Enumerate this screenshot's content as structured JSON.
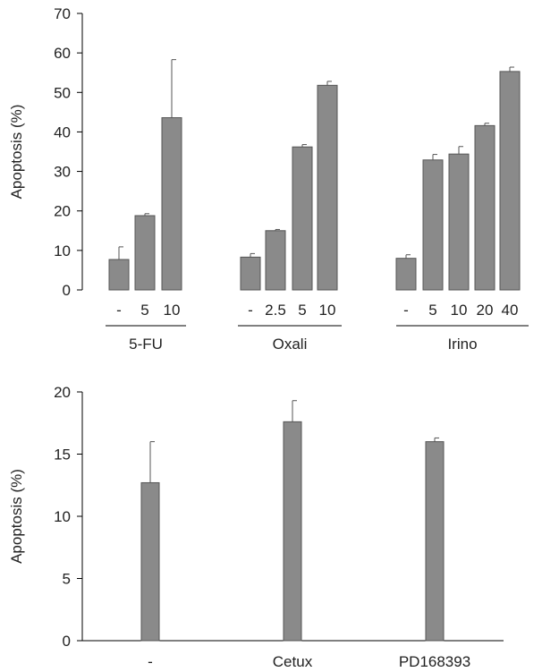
{
  "chart_data": [
    {
      "type": "bar",
      "ylabel": "Apoptosis (%)",
      "ylim": [
        0,
        70
      ],
      "yticks": [
        0,
        10,
        20,
        30,
        40,
        50,
        60,
        70
      ],
      "groups": [
        {
          "name": "5-FU",
          "categories": [
            "-",
            "5",
            "10"
          ],
          "values": [
            7.7,
            18.8,
            43.6
          ],
          "errors": [
            3.2,
            0.5,
            14.7
          ]
        },
        {
          "name": "Oxali",
          "categories": [
            "-",
            "2.5",
            "5",
            "10"
          ],
          "values": [
            8.3,
            15.0,
            36.2,
            51.8
          ],
          "errors": [
            0.9,
            0.3,
            0.6,
            1.0
          ]
        },
        {
          "name": "Irino",
          "categories": [
            "-",
            "5",
            "10",
            "20",
            "40"
          ],
          "values": [
            8.0,
            32.9,
            34.4,
            41.6,
            55.3
          ],
          "errors": [
            0.9,
            1.4,
            1.9,
            0.6,
            1.1
          ]
        }
      ]
    },
    {
      "type": "bar",
      "ylabel": "Apoptosis (%)",
      "ylim": [
        0,
        20
      ],
      "yticks": [
        0,
        5,
        10,
        15,
        20
      ],
      "categories": [
        "-",
        "Cetux",
        "PD168393"
      ],
      "values": [
        12.7,
        17.6,
        16.0
      ],
      "errors": [
        3.3,
        1.7,
        0.3
      ]
    }
  ]
}
